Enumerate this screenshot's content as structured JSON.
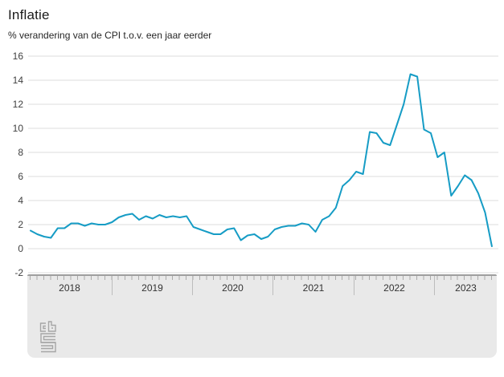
{
  "header": {
    "title": "Inflatie",
    "subtitle": "% verandering van de CPI t.o.v. een jaar eerder"
  },
  "chart_data": {
    "type": "line",
    "title": "Inflatie",
    "subtitle": "% verandering van de CPI t.o.v. een jaar eerder",
    "unit": "%",
    "frequency": "monthly",
    "x_start": "2018-01",
    "x_end": "2023-09",
    "x_year_labels": [
      "2018",
      "2019",
      "2020",
      "2021",
      "2022",
      "2023"
    ],
    "y_ticks": [
      16,
      14,
      12,
      10,
      8,
      6,
      4,
      2,
      0,
      -2
    ],
    "ylim": [
      -2,
      16
    ],
    "grid": true,
    "legend": "none",
    "line_color": "#169CC5",
    "values": [
      1.5,
      1.2,
      1.0,
      0.9,
      1.7,
      1.7,
      2.1,
      2.1,
      1.9,
      2.1,
      2.0,
      2.0,
      2.2,
      2.6,
      2.8,
      2.9,
      2.4,
      2.7,
      2.5,
      2.8,
      2.6,
      2.7,
      2.6,
      2.7,
      1.8,
      1.6,
      1.4,
      1.2,
      1.2,
      1.6,
      1.7,
      0.7,
      1.1,
      1.2,
      0.8,
      1.0,
      1.6,
      1.8,
      1.9,
      1.9,
      2.1,
      2.0,
      1.4,
      2.4,
      2.7,
      3.4,
      5.2,
      5.7,
      6.4,
      6.2,
      9.7,
      9.6,
      8.8,
      8.6,
      10.3,
      12.0,
      14.5,
      14.3,
      9.9,
      9.6,
      7.6,
      8.0,
      4.4,
      5.2,
      6.1,
      5.7,
      4.6,
      3.0,
      0.2
    ]
  },
  "footer": {
    "logo": "cbs-logo"
  }
}
